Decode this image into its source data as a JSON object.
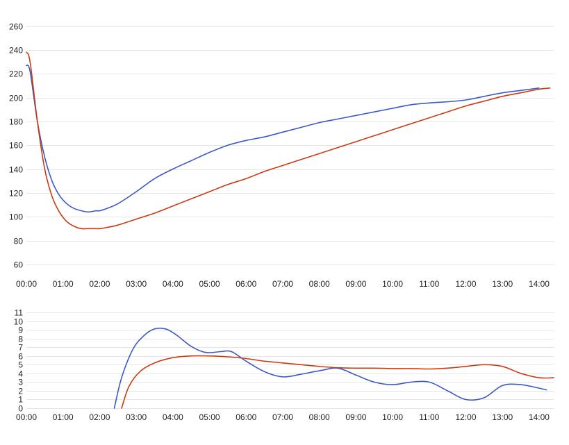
{
  "chart_data": [
    {
      "type": "line",
      "grid": true,
      "legend": "none",
      "x_unit": "hours",
      "x": [
        0,
        0.1,
        0.3,
        0.5,
        0.7,
        0.9,
        1.1,
        1.3,
        1.5,
        1.7,
        1.9,
        2.0,
        2.2,
        2.5,
        3.0,
        3.5,
        4.0,
        4.5,
        5.0,
        5.5,
        6.0,
        6.5,
        7.0,
        7.5,
        8.0,
        8.5,
        9.0,
        9.5,
        10.0,
        10.5,
        11.0,
        11.5,
        12.0,
        12.5,
        13.0,
        13.5,
        14.0,
        14.3
      ],
      "x_ticks": [
        0,
        1,
        2,
        3,
        4,
        5,
        6,
        7,
        8,
        9,
        10,
        11,
        12,
        13,
        14
      ],
      "x_tick_labels": [
        "00:00",
        "01:00",
        "02:00",
        "03:00",
        "04:00",
        "05:00",
        "06:00",
        "07:00",
        "08:00",
        "09:00",
        "10:00",
        "11:00",
        "12:00",
        "13:00",
        "14:00"
      ],
      "ylim": [
        50,
        265
      ],
      "y_ticks": [
        60,
        80,
        100,
        120,
        140,
        160,
        180,
        200,
        220,
        240,
        260
      ],
      "series": [
        {
          "color": "#3b58c7",
          "values": [
            227,
            222,
            180,
            150,
            130,
            118,
            111,
            107,
            105,
            104,
            105,
            105,
            107,
            111,
            121,
            132,
            140,
            147,
            154,
            160,
            164,
            167,
            171,
            175,
            179,
            182,
            185,
            188,
            191,
            194,
            195.5,
            196.5,
            198,
            201,
            204,
            206,
            208,
            null
          ]
        },
        {
          "color": "#cc3a10",
          "values": [
            238,
            230,
            180,
            140,
            117,
            104,
            96,
            92,
            90,
            90,
            90,
            90,
            91,
            93,
            98,
            103,
            109,
            115,
            121,
            127,
            132,
            138,
            143,
            148,
            153,
            158,
            163,
            168,
            173,
            178,
            183,
            188,
            193,
            197,
            201,
            204,
            207,
            208
          ]
        }
      ]
    },
    {
      "type": "line",
      "grid": true,
      "legend": "none",
      "x_unit": "hours",
      "x_ticks": [
        0,
        1,
        2,
        3,
        4,
        5,
        6,
        7,
        8,
        9,
        10,
        11,
        12,
        13,
        14
      ],
      "x_tick_labels": [
        "00:00",
        "01:00",
        "02:00",
        "03:00",
        "04:00",
        "05:00",
        "06:00",
        "07:00",
        "08:00",
        "09:00",
        "10:00",
        "11:00",
        "12:00",
        "13:00",
        "14:00"
      ],
      "ylim": [
        0,
        11
      ],
      "y_ticks": [
        0,
        1,
        2,
        3,
        4,
        5,
        6,
        7,
        8,
        9,
        10,
        11
      ],
      "series": [
        {
          "color": "#3b58c7",
          "x": [
            2.4,
            2.6,
            2.9,
            3.2,
            3.5,
            3.8,
            4.1,
            4.5,
            4.9,
            5.3,
            5.6,
            6.0,
            6.5,
            7.0,
            7.5,
            8.0,
            8.5,
            9.0,
            9.5,
            10.0,
            10.5,
            11.0,
            11.5,
            12.0,
            12.5,
            13.0,
            13.5,
            14.0,
            14.2
          ],
          "values": [
            0,
            3.5,
            6.7,
            8.3,
            9.1,
            9.1,
            8.4,
            7.1,
            6.4,
            6.5,
            6.5,
            5.4,
            4.2,
            3.6,
            3.9,
            4.3,
            4.6,
            3.8,
            3.0,
            2.7,
            3.0,
            3.0,
            2.0,
            1.0,
            1.2,
            2.6,
            2.7,
            2.3,
            2.1
          ]
        },
        {
          "color": "#cc3a10",
          "x": [
            2.6,
            2.8,
            3.1,
            3.5,
            4.0,
            4.5,
            5.0,
            5.5,
            6.0,
            6.5,
            7.0,
            7.5,
            8.0,
            8.5,
            9.0,
            9.5,
            10.0,
            10.5,
            11.0,
            11.5,
            12.0,
            12.5,
            13.0,
            13.5,
            14.0,
            14.4
          ],
          "values": [
            0,
            2.5,
            4.2,
            5.2,
            5.8,
            6.0,
            6.0,
            5.9,
            5.7,
            5.4,
            5.2,
            5.0,
            4.8,
            4.65,
            4.6,
            4.6,
            4.55,
            4.55,
            4.5,
            4.6,
            4.8,
            5.0,
            4.8,
            4.0,
            3.5,
            3.5
          ]
        }
      ]
    }
  ]
}
